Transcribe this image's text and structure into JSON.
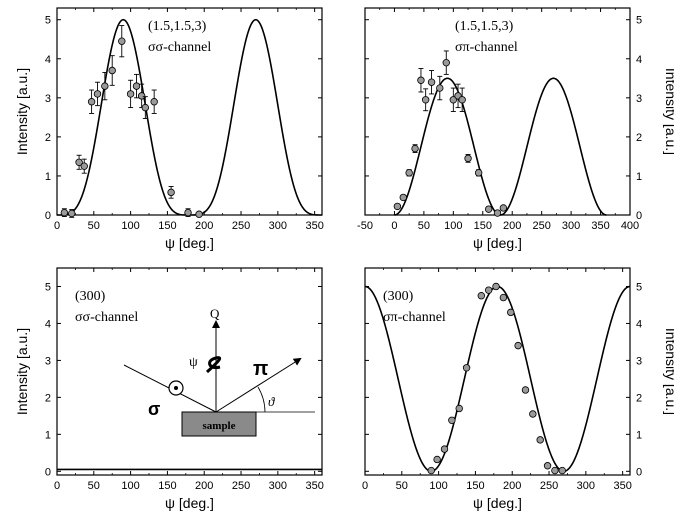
{
  "chart_data": [
    {
      "type": "scatter",
      "panel": "top-left",
      "xlabel": "ψ [deg.]",
      "ylabel": "Intensity [a.u.]",
      "ylabel_side": "left",
      "xlim": [
        0,
        360
      ],
      "ylim": [
        0,
        5.3
      ],
      "xticks": [
        0,
        50,
        100,
        150,
        200,
        250,
        300,
        350
      ],
      "yticks": [
        0,
        1,
        2,
        3,
        4,
        5
      ],
      "annotations": [
        "(1.5,1.5,3)",
        "σσ-channel"
      ],
      "series": [
        {
          "kind": "points",
          "x": [
            10,
            20,
            30,
            37,
            47,
            55,
            65,
            75,
            88,
            100,
            108,
            115,
            120,
            132,
            155,
            178,
            193
          ],
          "y": [
            0.06,
            0.04,
            1.35,
            1.25,
            2.9,
            3.1,
            3.3,
            3.7,
            4.45,
            3.1,
            3.3,
            3.05,
            2.75,
            2.9,
            0.58,
            0.06,
            0.02
          ],
          "yerr": [
            0.1,
            0.1,
            0.18,
            0.18,
            0.3,
            0.3,
            0.35,
            0.38,
            0.4,
            0.35,
            0.3,
            0.3,
            0.28,
            0.3,
            0.15,
            0.1,
            0.05
          ]
        },
        {
          "kind": "curve",
          "model": "sin4",
          "amplitude": 5,
          "period": 180,
          "phase_zero": 0
        }
      ]
    },
    {
      "type": "scatter",
      "panel": "top-right",
      "xlabel": "ψ [deg.]",
      "ylabel": "Intensity [a.u.]",
      "ylabel_side": "right",
      "xlim": [
        -50,
        400
      ],
      "ylim": [
        0,
        5.3
      ],
      "xticks": [
        -50,
        0,
        50,
        100,
        150,
        200,
        250,
        300,
        350,
        400
      ],
      "yticks": [
        0,
        1,
        2,
        3,
        4,
        5
      ],
      "annotations": [
        "(1.5,1.5,3)",
        "σπ-channel"
      ],
      "series": [
        {
          "kind": "points",
          "x": [
            5,
            15,
            25,
            35,
            45,
            53,
            63,
            77,
            88,
            100,
            108,
            115,
            125,
            143,
            160,
            175,
            185
          ],
          "y": [
            0.22,
            0.45,
            1.08,
            1.7,
            3.45,
            2.95,
            3.4,
            3.25,
            3.9,
            2.95,
            3.05,
            2.95,
            1.45,
            1.08,
            0.15,
            0.05,
            0.18
          ],
          "yerr": [
            0.05,
            0.05,
            0.08,
            0.1,
            0.3,
            0.28,
            0.3,
            0.3,
            0.3,
            0.3,
            0.3,
            0.3,
            0.1,
            0.08,
            0.05,
            0.05,
            0.05
          ]
        },
        {
          "kind": "curve",
          "model": "sin2",
          "amplitude": 3.5,
          "period": 180,
          "phase_zero": 0,
          "domain": [
            0,
            360
          ]
        }
      ]
    },
    {
      "type": "line",
      "panel": "bottom-left",
      "xlabel": "ψ [deg.]",
      "ylabel": "Intensity [a.u.]",
      "ylabel_side": "left",
      "xlim": [
        0,
        360
      ],
      "ylim": [
        -0.1,
        5.5
      ],
      "xticks": [
        0,
        50,
        100,
        150,
        200,
        250,
        300,
        350
      ],
      "yticks": [
        0,
        1,
        2,
        3,
        4,
        5
      ],
      "annotations": [
        "(300)",
        "σσ-channel",
        "Q",
        "ψ",
        "π",
        "σ",
        "ϑ",
        "sample"
      ],
      "series": [
        {
          "kind": "curve",
          "model": "flat",
          "amplitude": 0.05
        }
      ]
    },
    {
      "type": "scatter",
      "panel": "bottom-right",
      "xlabel": "ψ [deg.]",
      "ylabel": "Intensity [a.u.]",
      "ylabel_side": "right",
      "xlim": [
        0,
        360
      ],
      "ylim": [
        -0.1,
        5.5
      ],
      "xticks": [
        0,
        50,
        100,
        150,
        200,
        250,
        300,
        350
      ],
      "yticks": [
        0,
        1,
        2,
        3,
        4,
        5
      ],
      "annotations": [
        "(300)",
        "σπ-channel"
      ],
      "series": [
        {
          "kind": "points",
          "x": [
            90,
            98,
            108,
            118,
            128,
            138,
            158,
            168,
            178,
            188,
            198,
            208,
            218,
            228,
            238,
            248,
            258,
            268
          ],
          "y": [
            0.02,
            0.32,
            0.6,
            1.38,
            1.7,
            2.8,
            4.75,
            4.9,
            5.0,
            4.7,
            4.3,
            3.4,
            2.2,
            1.55,
            0.85,
            0.15,
            0.02,
            0.02
          ],
          "yerr": []
        },
        {
          "kind": "curve",
          "model": "cos2",
          "amplitude": 5,
          "period": 360
        }
      ]
    }
  ]
}
